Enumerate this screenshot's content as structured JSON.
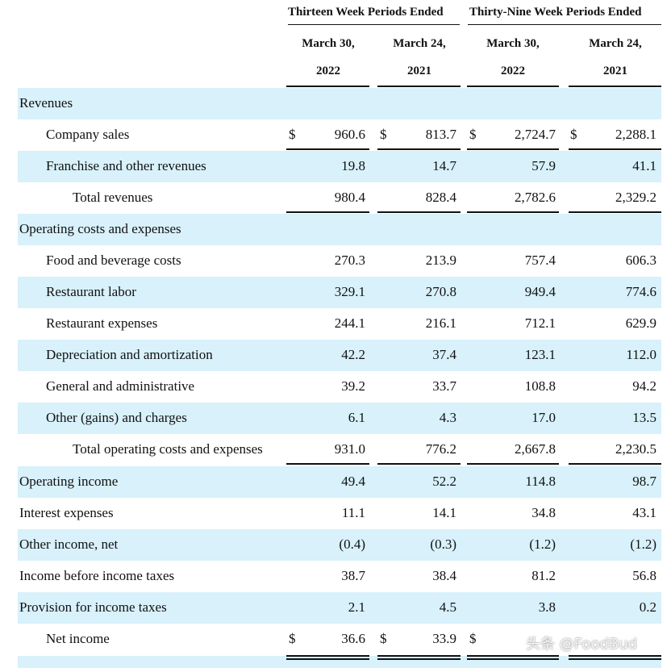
{
  "header": {
    "group13": "Thirteen Week Periods Ended",
    "group39": "Thirty-Nine Week Periods Ended",
    "columns": [
      {
        "month_day": "March 30,",
        "year": "2022"
      },
      {
        "month_day": "March 24,",
        "year": "2021"
      },
      {
        "month_day": "March 30,",
        "year": "2022"
      },
      {
        "month_day": "March 24,",
        "year": "2021"
      }
    ]
  },
  "currency_symbol": "$",
  "rows": [
    {
      "label": "Revenues",
      "values": [
        "",
        "",
        "",
        ""
      ]
    },
    {
      "label": "Company sales",
      "values": [
        "960.6",
        "813.7",
        "2,724.7",
        "2,288.1"
      ]
    },
    {
      "label": "Franchise and other revenues",
      "values": [
        "19.8",
        "14.7",
        "57.9",
        "41.1"
      ]
    },
    {
      "label": "Total revenues",
      "values": [
        "980.4",
        "828.4",
        "2,782.6",
        "2,329.2"
      ]
    },
    {
      "label": "Operating costs and expenses",
      "values": [
        "",
        "",
        "",
        ""
      ]
    },
    {
      "label": "Food and beverage costs",
      "values": [
        "270.3",
        "213.9",
        "757.4",
        "606.3"
      ]
    },
    {
      "label": "Restaurant labor",
      "values": [
        "329.1",
        "270.8",
        "949.4",
        "774.6"
      ]
    },
    {
      "label": "Restaurant expenses",
      "values": [
        "244.1",
        "216.1",
        "712.1",
        "629.9"
      ]
    },
    {
      "label": "Depreciation and amortization",
      "values": [
        "42.2",
        "37.4",
        "123.1",
        "112.0"
      ]
    },
    {
      "label": "General and administrative",
      "values": [
        "39.2",
        "33.7",
        "108.8",
        "94.2"
      ]
    },
    {
      "label": "Other (gains) and charges",
      "values": [
        "6.1",
        "4.3",
        "17.0",
        "13.5"
      ]
    },
    {
      "label": "Total operating costs and expenses",
      "values": [
        "931.0",
        "776.2",
        "2,667.8",
        "2,230.5"
      ]
    },
    {
      "label": "Operating income",
      "values": [
        "49.4",
        "52.2",
        "114.8",
        "98.7"
      ]
    },
    {
      "label": "Interest expenses",
      "values": [
        "11.1",
        "14.1",
        "34.8",
        "43.1"
      ]
    },
    {
      "label": "Other income, net",
      "values": [
        "(0.4)",
        "(0.3)",
        "(1.2)",
        "(1.2)"
      ]
    },
    {
      "label": "Income before income taxes",
      "values": [
        "38.7",
        "38.4",
        "81.2",
        "56.8"
      ]
    },
    {
      "label": "Provision for income taxes",
      "values": [
        "2.1",
        "4.5",
        "3.8",
        "0.2"
      ]
    },
    {
      "label": "Net income",
      "values": [
        "36.6",
        "33.9",
        "",
        ""
      ]
    }
  ],
  "watermark": "头条 @FoodBud"
}
